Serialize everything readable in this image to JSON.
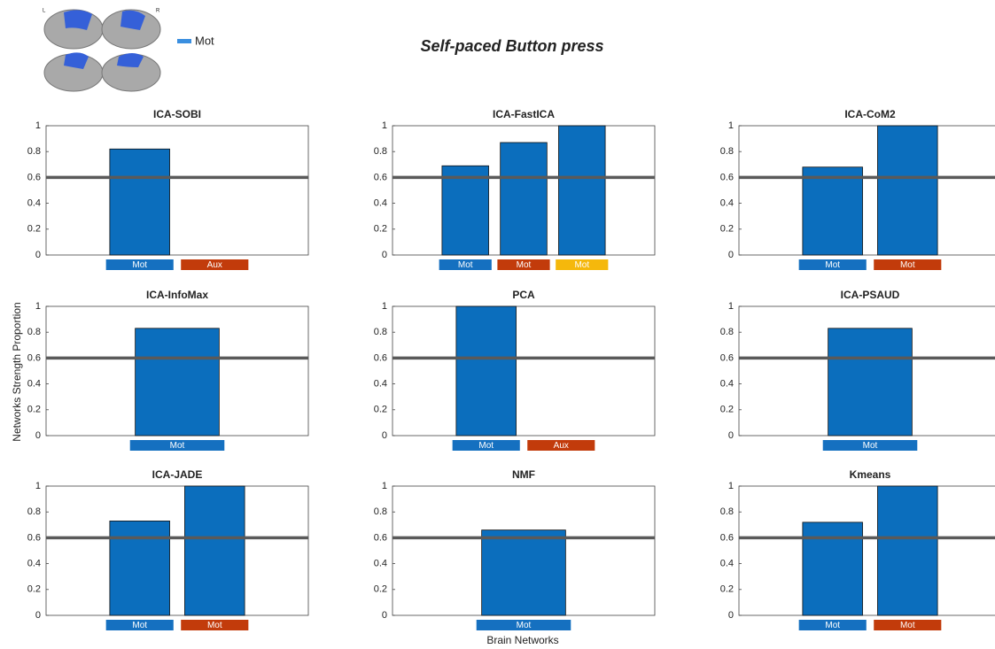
{
  "title": "Self-paced Button press",
  "legend": {
    "name": "Mot",
    "color": "#3a8fe0"
  },
  "brain_labels": [
    "L",
    "R"
  ],
  "ylabel": "Networks Strength Proportion",
  "xlabel": "Brain Networks",
  "chart_data": [
    {
      "type": "bar",
      "title": "ICA-SOBI",
      "categories": [
        "Mot",
        "Aux"
      ],
      "category_colors": [
        "#1570c0",
        "#c23b0b"
      ],
      "values": [
        0.82,
        0
      ],
      "color": "#0b6ebd",
      "ylim": [
        0,
        1
      ],
      "yticks": [
        0,
        0.2,
        0.4,
        0.6,
        0.8,
        1
      ],
      "threshold": 0.6
    },
    {
      "type": "bar",
      "title": "ICA-FastICA",
      "categories": [
        "Mot",
        "Mot",
        "Mot"
      ],
      "category_colors": [
        "#1570c0",
        "#c23b0b",
        "#f5b80c"
      ],
      "values": [
        0.69,
        0.87,
        1
      ],
      "color": "#0b6ebd",
      "ylim": [
        0,
        1
      ],
      "yticks": [
        0,
        0.2,
        0.4,
        0.6,
        0.8,
        1
      ],
      "threshold": 0.6
    },
    {
      "type": "bar",
      "title": "ICA-CoM2",
      "categories": [
        "Mot",
        "Mot"
      ],
      "category_colors": [
        "#1570c0",
        "#c23b0b"
      ],
      "values": [
        0.68,
        1
      ],
      "color": "#0b6ebd",
      "ylim": [
        0,
        1
      ],
      "yticks": [
        0,
        0.2,
        0.4,
        0.6,
        0.8,
        1
      ],
      "threshold": 0.6
    },
    {
      "type": "bar",
      "title": "ICA-InfoMax",
      "categories": [
        "Mot"
      ],
      "category_colors": [
        "#1570c0"
      ],
      "values": [
        0.83
      ],
      "color": "#0b6ebd",
      "ylim": [
        0,
        1
      ],
      "yticks": [
        0,
        0.2,
        0.4,
        0.6,
        0.8,
        1
      ],
      "threshold": 0.6
    },
    {
      "type": "bar",
      "title": "PCA",
      "categories": [
        "Mot",
        "Aux"
      ],
      "category_colors": [
        "#1570c0",
        "#c23b0b"
      ],
      "values": [
        1,
        0
      ],
      "color": "#0b6ebd",
      "ylim": [
        0,
        1
      ],
      "yticks": [
        0,
        0.2,
        0.4,
        0.6,
        0.8,
        1
      ],
      "threshold": 0.6
    },
    {
      "type": "bar",
      "title": "ICA-PSAUD",
      "categories": [
        "Mot"
      ],
      "category_colors": [
        "#1570c0"
      ],
      "values": [
        0.83
      ],
      "color": "#0b6ebd",
      "ylim": [
        0,
        1
      ],
      "yticks": [
        0,
        0.2,
        0.4,
        0.6,
        0.8,
        1
      ],
      "threshold": 0.6
    },
    {
      "type": "bar",
      "title": "ICA-JADE",
      "categories": [
        "Mot",
        "Mot"
      ],
      "category_colors": [
        "#1570c0",
        "#c23b0b"
      ],
      "values": [
        0.73,
        1
      ],
      "color": "#0b6ebd",
      "ylim": [
        0,
        1
      ],
      "yticks": [
        0,
        0.2,
        0.4,
        0.6,
        0.8,
        1
      ],
      "threshold": 0.6
    },
    {
      "type": "bar",
      "title": "NMF",
      "categories": [
        "Mot"
      ],
      "category_colors": [
        "#1570c0"
      ],
      "values": [
        0.66
      ],
      "color": "#0b6ebd",
      "ylim": [
        0,
        1
      ],
      "yticks": [
        0,
        0.2,
        0.4,
        0.6,
        0.8,
        1
      ],
      "threshold": 0.6
    },
    {
      "type": "bar",
      "title": "Kmeans",
      "categories": [
        "Mot",
        "Mot"
      ],
      "category_colors": [
        "#1570c0",
        "#c23b0b"
      ],
      "values": [
        0.72,
        1
      ],
      "color": "#0b6ebd",
      "ylim": [
        0,
        1
      ],
      "yticks": [
        0,
        0.2,
        0.4,
        0.6,
        0.8,
        1
      ],
      "threshold": 0.6
    }
  ]
}
